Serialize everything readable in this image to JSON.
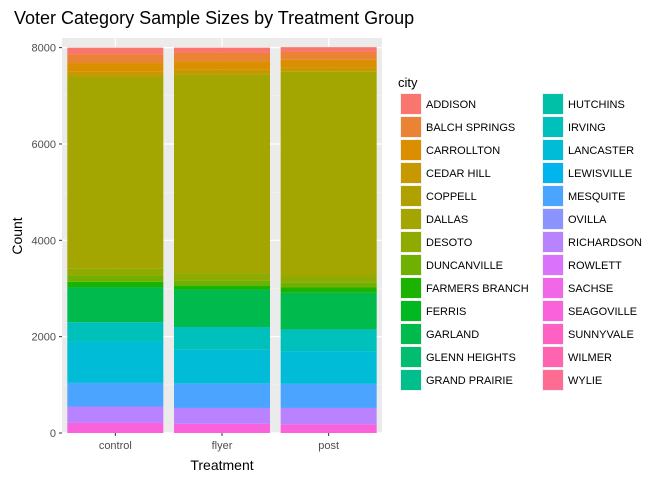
{
  "chart_data": {
    "type": "bar",
    "stacked": true,
    "title": "Voter Category Sample Sizes by Treatment Group",
    "xlabel": "Treatment",
    "ylabel": "Count",
    "categories": [
      "control",
      "flyer",
      "post"
    ],
    "ylim": [
      0,
      8200
    ],
    "yticks": [
      0,
      2000,
      4000,
      6000,
      8000
    ],
    "grid": true,
    "legend": {
      "title": "city",
      "placement": "right",
      "columns": 2
    },
    "series": [
      {
        "name": "ADDISON",
        "color": "#F8766D",
        "values": [
          140,
          110,
          100
        ]
      },
      {
        "name": "BALCH SPRINGS",
        "color": "#EB8335",
        "values": [
          180,
          170,
          160
        ]
      },
      {
        "name": "CARROLLTON",
        "color": "#DB8E00",
        "values": [
          170,
          170,
          160
        ]
      },
      {
        "name": "CEDAR HILL",
        "color": "#C79800",
        "values": [
          110,
          100,
          90
        ]
      },
      {
        "name": "COPPELL",
        "color": "#B0A100",
        "values": [
          0,
          0,
          0
        ]
      },
      {
        "name": "DALLAS",
        "color": "#A3A500",
        "values": [
          3990,
          4130,
          4230
        ]
      },
      {
        "name": "DESOTO",
        "color": "#8FAA00",
        "values": [
          150,
          150,
          140
        ]
      },
      {
        "name": "DUNCANVILLE",
        "color": "#6FB000",
        "values": [
          120,
          110,
          110
        ]
      },
      {
        "name": "FARMERS BRANCH",
        "color": "#1BB300",
        "values": [
          110,
          80,
          110
        ]
      },
      {
        "name": "FERRIS",
        "color": "#00B81F",
        "values": [
          0,
          0,
          0
        ]
      },
      {
        "name": "GARLAND",
        "color": "#00BA4D",
        "values": [
          730,
          780,
          760
        ]
      },
      {
        "name": "GLENN HEIGHTS",
        "color": "#00BD6F",
        "values": [
          0,
          0,
          0
        ]
      },
      {
        "name": "GRAND PRAIRIE",
        "color": "#00BF8C",
        "values": [
          0,
          0,
          0
        ]
      },
      {
        "name": "HUTCHINS",
        "color": "#00C1A7",
        "values": [
          0,
          0,
          0
        ]
      },
      {
        "name": "IRVING",
        "color": "#00C0BB",
        "values": [
          410,
          470,
          450
        ]
      },
      {
        "name": "LANCASTER",
        "color": "#00BCD6",
        "values": [
          850,
          700,
          680
        ]
      },
      {
        "name": "LEWISVILLE",
        "color": "#00B5EE",
        "values": [
          0,
          0,
          0
        ]
      },
      {
        "name": "MESQUITE",
        "color": "#4BA4FF",
        "values": [
          490,
          510,
          500
        ]
      },
      {
        "name": "OVILLA",
        "color": "#8B93FF",
        "values": [
          0,
          0,
          0
        ]
      },
      {
        "name": "RICHARDSON",
        "color": "#B983FF",
        "values": [
          340,
          330,
          340
        ]
      },
      {
        "name": "ROWLETT",
        "color": "#DB72FB",
        "values": [
          0,
          0,
          0
        ]
      },
      {
        "name": "SACHSE",
        "color": "#F067E7",
        "values": [
          0,
          0,
          0
        ]
      },
      {
        "name": "SEAGOVILLE",
        "color": "#FA62DB",
        "values": [
          210,
          190,
          180
        ]
      },
      {
        "name": "SUNNYVALE",
        "color": "#FF61C3",
        "values": [
          0,
          0,
          0
        ]
      },
      {
        "name": "WILMER",
        "color": "#FF64B0",
        "values": [
          0,
          0,
          0
        ]
      },
      {
        "name": "WYLIE",
        "color": "#FF6C91",
        "values": [
          0,
          0,
          0
        ]
      }
    ]
  }
}
